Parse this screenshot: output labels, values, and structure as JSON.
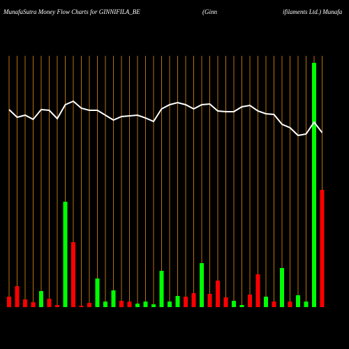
{
  "chart_data": {
    "type": "bar",
    "title": "MunafaSutra  Money Flow  Charts for GINNIFILA_BE",
    "subtitle_parts": [
      "(Ginn",
      "ifilaments Ltd.) Munafa"
    ],
    "categories": [
      null,
      null,
      null,
      null,
      null,
      null,
      null,
      null,
      null,
      null,
      null,
      null,
      null,
      null,
      null,
      null,
      null,
      null,
      null,
      null,
      null,
      null,
      null,
      null,
      null,
      null,
      null,
      null,
      null,
      null,
      null,
      null,
      null,
      null,
      null,
      null,
      null,
      null,
      null,
      null
    ],
    "values": [
      15,
      30,
      11,
      7,
      23,
      12,
      3,
      151,
      93,
      2,
      6,
      41,
      8,
      24,
      9,
      8,
      5,
      8,
      4,
      52,
      8,
      16,
      15,
      20,
      63,
      19,
      38,
      14,
      9,
      3,
      18,
      47,
      15,
      8,
      56,
      8,
      17,
      8,
      350,
      168
    ],
    "colors": [
      "#ff0000",
      "#ff0000",
      "#ff0000",
      "#ff0000",
      "#00ff00",
      "#ff0000",
      "#ff0000",
      "#00ff00",
      "#ff0000",
      "#ff0000",
      "#ff0000",
      "#00ff00",
      "#00ff00",
      "#00ff00",
      "#ff0000",
      "#ff0000",
      "#00ff00",
      "#00ff00",
      "#00ff00",
      "#00ff00",
      "#00ff00",
      "#00ff00",
      "#ff0000",
      "#ff0000",
      "#00ff00",
      "#ff0000",
      "#ff0000",
      "#ff0000",
      "#00ff00",
      "#00ff00",
      "#ff0000",
      "#ff0000",
      "#00ff00",
      "#ff0000",
      "#00ff00",
      "#ff0000",
      "#00ff00",
      "#00ff00",
      "#00ff00",
      "#ff0000"
    ],
    "line": {
      "color": "#ffffff",
      "values": [
        283,
        272,
        275,
        269,
        283,
        282,
        270,
        290,
        295,
        285,
        282,
        282,
        275,
        268,
        273,
        274,
        275,
        271,
        266,
        284,
        290,
        293,
        290,
        284,
        290,
        291,
        281,
        280,
        280,
        287,
        289,
        281,
        277,
        276,
        262,
        257,
        246,
        248,
        265,
        250
      ]
    },
    "ylim": [
      0,
      350
    ],
    "grid": true,
    "grid_color": "#b8720a"
  }
}
